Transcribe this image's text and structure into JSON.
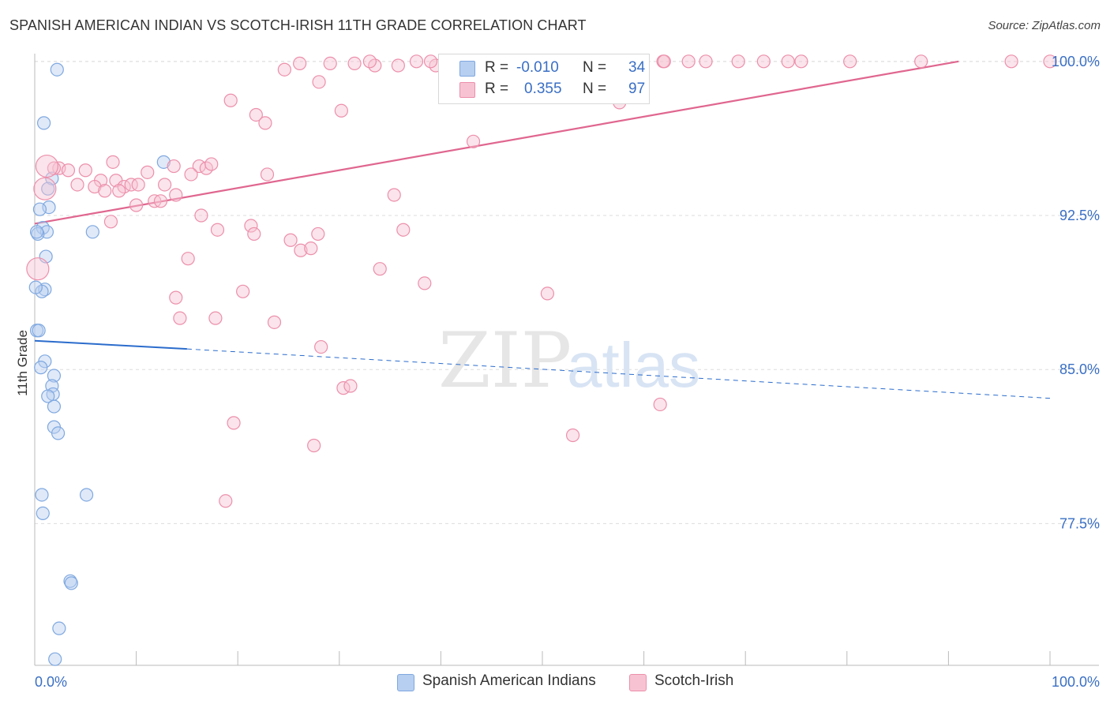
{
  "title": "SPANISH AMERICAN INDIAN VS SCOTCH-IRISH 11TH GRADE CORRELATION CHART",
  "source": "Source: ZipAtlas.com",
  "watermark": {
    "zip": "ZIP",
    "atlas": "atlas"
  },
  "colors": {
    "blue": "#7fa8e0",
    "blue_fill": "#b7cff0",
    "blue_line": "#2b6ccc",
    "pink": "#ec8fab",
    "pink_fill": "#f7c3d2",
    "pink_line": "#e0668f",
    "tick_text": "#3a6fc4",
    "grid": "#dddddd"
  },
  "legend": {
    "rows": [
      {
        "r_label": "R =",
        "r_value": "-0.010",
        "n_label": "N =",
        "n_value": "34"
      },
      {
        "r_label": "R =",
        "r_value": "0.355",
        "n_label": "N =",
        "n_value": "97"
      }
    ]
  },
  "bottom_legend": {
    "blue_label": "Spanish American Indians",
    "pink_label": "Scotch-Irish"
  },
  "chart_data": {
    "type": "scatter",
    "title": "SPANISH AMERICAN INDIAN VS SCOTCH-IRISH 11TH GRADE CORRELATION CHART",
    "xlabel": "",
    "ylabel": "11th Grade",
    "xlim": [
      0,
      100
    ],
    "ylim": [
      70.6,
      100.3
    ],
    "x_tick_labels": [
      "0.0%",
      "100.0%"
    ],
    "y_ticks": [
      100.0,
      92.5,
      85.0,
      77.5
    ],
    "y_tick_labels": [
      "100.0%",
      "92.5%",
      "85.0%",
      "77.5%"
    ],
    "series": [
      {
        "name": "Spanish American Indians",
        "color": "blue",
        "r": -0.01,
        "n": 34,
        "trend": {
          "x0": 0,
          "y0": 86.4,
          "x1": 15,
          "y1": 86.0,
          "dash_x1": 100,
          "dash_y1": 83.6
        },
        "points": [
          [
            2.2,
            99.6
          ],
          [
            0.9,
            97.0
          ],
          [
            12.7,
            95.1
          ],
          [
            1.7,
            94.3
          ],
          [
            1.3,
            93.8
          ],
          [
            1.4,
            92.9
          ],
          [
            0.5,
            92.8
          ],
          [
            0.8,
            91.9
          ],
          [
            1.2,
            91.7
          ],
          [
            0.3,
            91.6
          ],
          [
            5.7,
            91.7
          ],
          [
            1.1,
            90.5
          ],
          [
            1.0,
            88.9
          ],
          [
            0.7,
            88.8
          ],
          [
            0.2,
            86.9
          ],
          [
            0.4,
            86.9
          ],
          [
            1.0,
            85.4
          ],
          [
            0.6,
            85.1
          ],
          [
            1.9,
            84.7
          ],
          [
            1.7,
            84.2
          ],
          [
            1.8,
            83.8
          ],
          [
            1.3,
            83.7
          ],
          [
            1.9,
            83.2
          ],
          [
            1.9,
            82.2
          ],
          [
            2.3,
            81.9
          ],
          [
            0.7,
            78.9
          ],
          [
            5.1,
            78.9
          ],
          [
            0.8,
            78.0
          ],
          [
            3.5,
            74.7
          ],
          [
            3.6,
            74.6
          ],
          [
            2.4,
            72.4
          ],
          [
            2.0,
            70.9
          ],
          [
            0.1,
            89.0
          ],
          [
            0.2,
            91.7
          ]
        ],
        "large_points": []
      },
      {
        "name": "Scotch-Irish",
        "color": "pink",
        "r": 0.355,
        "n": 97,
        "trend": {
          "x0": 0,
          "y0": 92.1,
          "x1": 91.0,
          "y1": 100.0
        },
        "points": [
          [
            26.1,
            99.9
          ],
          [
            29.1,
            99.9
          ],
          [
            31.5,
            99.9
          ],
          [
            33.5,
            99.8
          ],
          [
            35.8,
            99.8
          ],
          [
            37.6,
            100.0
          ],
          [
            39.5,
            99.8
          ],
          [
            40.4,
            99.8
          ],
          [
            42.5,
            99.9
          ],
          [
            43.7,
            99.9
          ],
          [
            46.1,
            99.9
          ],
          [
            48.0,
            100.0
          ],
          [
            49.7,
            99.9
          ],
          [
            52.3,
            99.9
          ],
          [
            53.4,
            100.0
          ],
          [
            55.1,
            100.0
          ],
          [
            57.6,
            100.0
          ],
          [
            59.5,
            99.8
          ],
          [
            61.9,
            100.0
          ],
          [
            64.4,
            100.0
          ],
          [
            66.1,
            100.0
          ],
          [
            69.3,
            100.0
          ],
          [
            71.8,
            100.0
          ],
          [
            74.2,
            100.0
          ],
          [
            75.5,
            100.0
          ],
          [
            80.3,
            100.0
          ],
          [
            87.3,
            100.0
          ],
          [
            96.2,
            100.0
          ],
          [
            100.0,
            100.0
          ],
          [
            24.6,
            99.6
          ],
          [
            28.0,
            99.0
          ],
          [
            19.3,
            98.1
          ],
          [
            30.2,
            97.6
          ],
          [
            21.8,
            97.4
          ],
          [
            22.7,
            97.0
          ],
          [
            57.6,
            98.0
          ],
          [
            43.2,
            96.1
          ],
          [
            7.7,
            95.1
          ],
          [
            13.7,
            94.9
          ],
          [
            16.2,
            94.9
          ],
          [
            16.9,
            94.8
          ],
          [
            17.4,
            95.0
          ],
          [
            2.4,
            94.8
          ],
          [
            3.3,
            94.7
          ],
          [
            1.9,
            94.8
          ],
          [
            5.0,
            94.7
          ],
          [
            11.1,
            94.6
          ],
          [
            15.4,
            94.5
          ],
          [
            22.9,
            94.5
          ],
          [
            6.5,
            94.2
          ],
          [
            8.0,
            94.2
          ],
          [
            4.2,
            94.0
          ],
          [
            8.8,
            93.9
          ],
          [
            9.5,
            94.0
          ],
          [
            10.2,
            94.0
          ],
          [
            12.8,
            94.0
          ],
          [
            5.9,
            93.9
          ],
          [
            6.9,
            93.7
          ],
          [
            8.3,
            93.7
          ],
          [
            13.9,
            93.5
          ],
          [
            11.8,
            93.2
          ],
          [
            12.4,
            93.2
          ],
          [
            10.0,
            93.0
          ],
          [
            35.4,
            93.5
          ],
          [
            16.4,
            92.5
          ],
          [
            7.5,
            92.2
          ],
          [
            18.0,
            91.8
          ],
          [
            21.3,
            92.0
          ],
          [
            21.6,
            91.6
          ],
          [
            27.9,
            91.6
          ],
          [
            36.3,
            91.8
          ],
          [
            25.2,
            91.3
          ],
          [
            26.2,
            90.8
          ],
          [
            27.2,
            90.9
          ],
          [
            15.1,
            90.4
          ],
          [
            34.0,
            89.9
          ],
          [
            38.4,
            89.2
          ],
          [
            20.5,
            88.8
          ],
          [
            13.9,
            88.5
          ],
          [
            50.5,
            88.7
          ],
          [
            17.8,
            87.5
          ],
          [
            14.3,
            87.5
          ],
          [
            23.6,
            87.3
          ],
          [
            28.2,
            86.1
          ],
          [
            30.4,
            84.1
          ],
          [
            31.1,
            84.2
          ],
          [
            61.6,
            83.3
          ],
          [
            19.6,
            82.4
          ],
          [
            53.0,
            81.8
          ],
          [
            27.5,
            81.3
          ],
          [
            18.8,
            78.6
          ],
          [
            62.0,
            100.0
          ],
          [
            57.0,
            99.9
          ],
          [
            47.0,
            100.0
          ],
          [
            33.0,
            100.0
          ],
          [
            39.0,
            100.0
          ]
        ],
        "large_points": [
          [
            1.2,
            94.9
          ],
          [
            1.0,
            93.8
          ],
          [
            0.3,
            89.9
          ]
        ]
      }
    ]
  }
}
